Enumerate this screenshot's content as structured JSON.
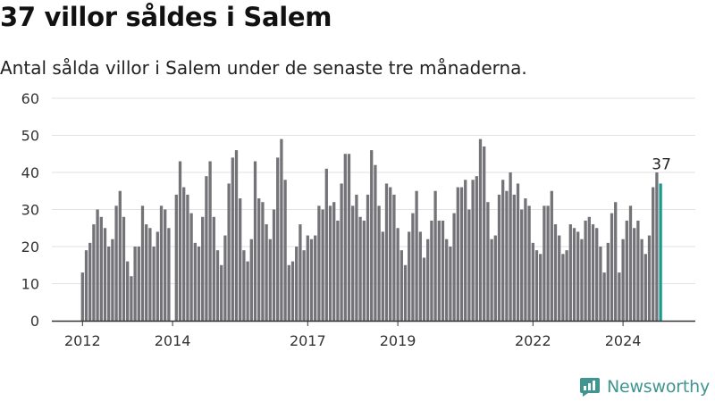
{
  "header": {
    "title": "37 villor såldes i Salem",
    "subtitle": "Antal sålda villor i Salem under de senaste tre månaderna."
  },
  "brand": {
    "name": "Newsworthy",
    "icon": "newsworthy-logo-icon"
  },
  "colors": {
    "bar": "#747478",
    "highlight": "#1a9a8f",
    "grid": "#e2e2e2",
    "axis": "#333333",
    "brand": "#3f958f"
  },
  "chart_data": {
    "type": "bar",
    "title": "37 villor såldes i Salem",
    "subtitle": "Antal sålda villor i Salem under de senaste tre månaderna.",
    "xlabel": "",
    "ylabel": "",
    "ylim": [
      0,
      60
    ],
    "y_ticks": [
      0,
      10,
      20,
      30,
      40,
      50,
      60
    ],
    "x_ticks": [
      "2012",
      "2014",
      "2017",
      "2019",
      "2022",
      "2024"
    ],
    "grid": true,
    "legend": "none",
    "start_month": "2012-01",
    "values": [
      13,
      19,
      21,
      26,
      30,
      28,
      25,
      20,
      22,
      31,
      35,
      28,
      16,
      12,
      20,
      20,
      31,
      26,
      25,
      20,
      24,
      31,
      30,
      25,
      0,
      34,
      43,
      36,
      34,
      29,
      21,
      20,
      28,
      39,
      43,
      28,
      19,
      15,
      23,
      37,
      44,
      46,
      33,
      19,
      16,
      22,
      43,
      33,
      32,
      26,
      22,
      30,
      44,
      49,
      38,
      15,
      16,
      20,
      26,
      19,
      23,
      22,
      23,
      31,
      30,
      41,
      31,
      32,
      27,
      37,
      45,
      45,
      31,
      34,
      28,
      27,
      34,
      46,
      42,
      31,
      24,
      37,
      36,
      34,
      25,
      19,
      15,
      24,
      29,
      35,
      24,
      17,
      22,
      27,
      35,
      27,
      27,
      22,
      20,
      29,
      36,
      36,
      38,
      30,
      38,
      39,
      49,
      47,
      32,
      22,
      23,
      34,
      38,
      35,
      40,
      34,
      37,
      30,
      33,
      31,
      21,
      19,
      18,
      31,
      31,
      35,
      26,
      23,
      18,
      19,
      26,
      25,
      24,
      22,
      27,
      28,
      26,
      25,
      20,
      13,
      21,
      29,
      32,
      13,
      22,
      27,
      31,
      25,
      27,
      22,
      18,
      23,
      36,
      40,
      37
    ],
    "highlight_last": true,
    "annotation": {
      "label": "37"
    }
  }
}
